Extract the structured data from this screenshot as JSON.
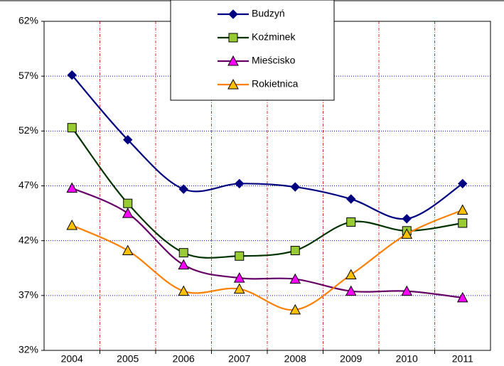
{
  "chart_data": {
    "type": "line",
    "categories": [
      "2004",
      "2005",
      "2006",
      "2007",
      "2008",
      "2009",
      "2010",
      "2011"
    ],
    "series": [
      {
        "name": "Budzyń",
        "color": "#000080",
        "marker": "diamond",
        "marker_color": "#000080",
        "values": [
          57.1,
          51.2,
          46.7,
          47.2,
          46.9,
          45.8,
          44.0,
          47.2
        ]
      },
      {
        "name": "Koźminek",
        "color": "#003300",
        "marker": "square",
        "marker_color": "#99cc33",
        "values": [
          52.3,
          45.4,
          40.9,
          40.6,
          41.1,
          43.7,
          42.9,
          43.6
        ]
      },
      {
        "name": "Mieścisko",
        "color": "#660066",
        "marker": "triangle",
        "marker_color": "#ff00ff",
        "values": [
          46.8,
          44.5,
          39.8,
          38.6,
          38.5,
          37.4,
          37.4,
          36.8
        ]
      },
      {
        "name": "Rokietnica",
        "color": "#ff8000",
        "marker": "triangle",
        "marker_color": "#ffc000",
        "values": [
          43.4,
          41.1,
          37.4,
          37.6,
          35.7,
          38.9,
          42.6,
          44.8
        ]
      }
    ],
    "ylim": [
      32,
      62
    ],
    "yticks": [
      {
        "value": 32,
        "label": "32%"
      },
      {
        "value": 37,
        "label": "37%"
      },
      {
        "value": 42,
        "label": "42%"
      },
      {
        "value": 47,
        "label": "47%"
      },
      {
        "value": 52,
        "label": "52%"
      },
      {
        "value": 57,
        "label": "57%"
      },
      {
        "value": 62,
        "label": "62%"
      }
    ],
    "grid": true
  }
}
